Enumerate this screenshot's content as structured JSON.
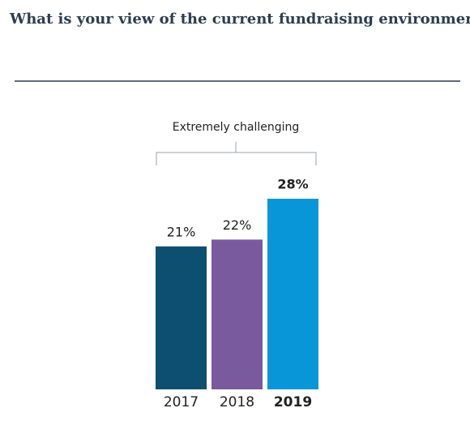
{
  "chart_data": {
    "type": "bar",
    "title": "What is your view of the current fundraising environment?",
    "group_label": "Extremely challenging",
    "categories": [
      "2017",
      "2018",
      "2019"
    ],
    "values": [
      21,
      22,
      28
    ],
    "value_labels": [
      "21%",
      "22%",
      "28%"
    ],
    "colors": [
      "#0d4f70",
      "#7a5a9f",
      "#0896d8"
    ]
  }
}
